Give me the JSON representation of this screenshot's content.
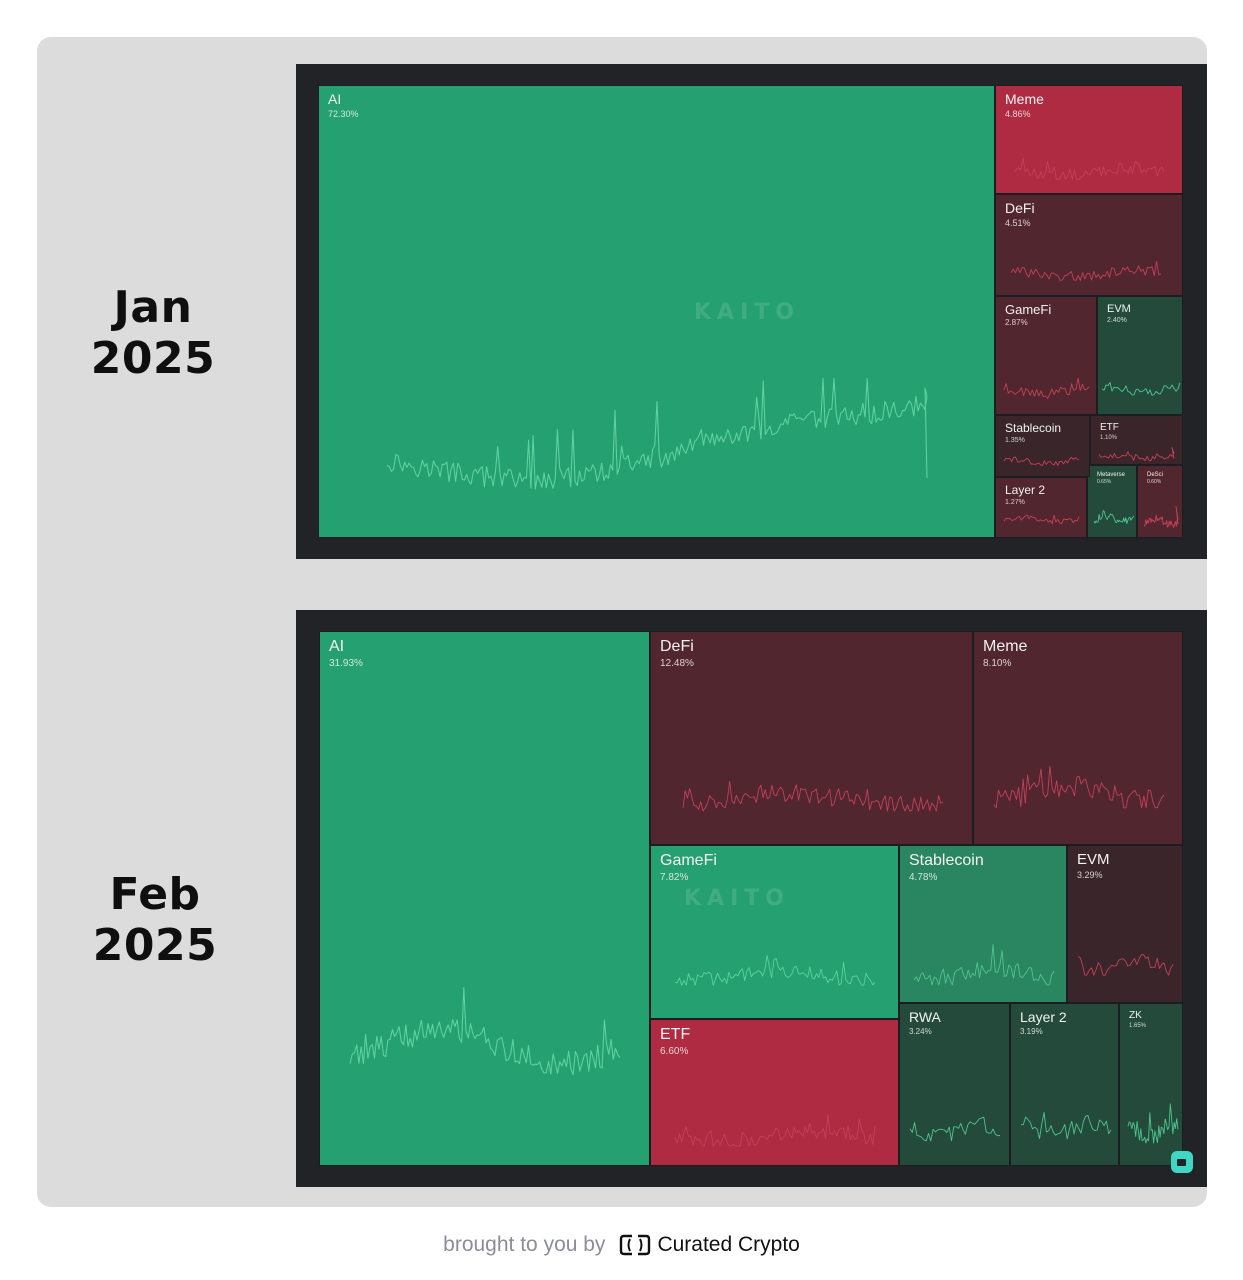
{
  "footer": {
    "prefix": "brought to you by",
    "brand": "Curated Crypto",
    "brand_icon": "curated-crypto-logo"
  },
  "watermark": "KAITO",
  "colors": {
    "strong_green": "#25a070",
    "mid_green": "#2a8660",
    "dark_green": "#234a3b",
    "strong_red": "#ae2b42",
    "mid_red": "#52262e",
    "dark_red": "#3a252a",
    "frame": "#222326",
    "panel": "#dcdcdc"
  },
  "chart_data": [
    {
      "type": "treemap",
      "title": "Jan 2025",
      "series": [
        {
          "name": "AI",
          "value": 72.3,
          "label": "72.30%",
          "color": "strong_green"
        },
        {
          "name": "Meme",
          "value": 4.86,
          "label": "4.86%",
          "color": "strong_red"
        },
        {
          "name": "DeFi",
          "value": 4.51,
          "label": "4.51%",
          "color": "mid_red"
        },
        {
          "name": "GameFi",
          "value": 2.87,
          "label": "2.87%",
          "color": "mid_red"
        },
        {
          "name": "EVM",
          "value": 2.4,
          "label": "2.40%",
          "color": "dark_green"
        },
        {
          "name": "Stablecoin",
          "value": 1.35,
          "label": "1.35%",
          "color": "dark_red"
        },
        {
          "name": "ETF",
          "value": 1.1,
          "label": "1.10%",
          "color": "dark_red"
        },
        {
          "name": "Layer 2",
          "value": 1.27,
          "label": "1.27%",
          "color": "mid_red"
        },
        {
          "name": "Metaverse",
          "value": 0.65,
          "label": "0.65%",
          "color": "dark_green"
        },
        {
          "name": "DeSci",
          "value": 0.6,
          "label": "0.60%",
          "color": "mid_red"
        }
      ]
    },
    {
      "type": "treemap",
      "title": "Feb 2025",
      "series": [
        {
          "name": "AI",
          "value": 31.93,
          "label": "31.93%",
          "color": "strong_green"
        },
        {
          "name": "DeFi",
          "value": 12.48,
          "label": "12.48%",
          "color": "mid_red"
        },
        {
          "name": "Meme",
          "value": 8.1,
          "label": "8.10%",
          "color": "mid_red"
        },
        {
          "name": "GameFi",
          "value": 7.82,
          "label": "7.82%",
          "color": "strong_green"
        },
        {
          "name": "Stablecoin",
          "value": 4.78,
          "label": "4.78%",
          "color": "mid_green"
        },
        {
          "name": "EVM",
          "value": 3.29,
          "label": "3.29%",
          "color": "dark_red"
        },
        {
          "name": "ETF",
          "value": 6.6,
          "label": "6.60%",
          "color": "strong_red"
        },
        {
          "name": "RWA",
          "value": 3.24,
          "label": "3.24%",
          "color": "dark_green"
        },
        {
          "name": "Layer 2",
          "value": 3.19,
          "label": "3.19%",
          "color": "dark_green"
        },
        {
          "name": "ZK",
          "value": 1.65,
          "label": "1.65%",
          "color": "dark_green"
        }
      ]
    }
  ]
}
